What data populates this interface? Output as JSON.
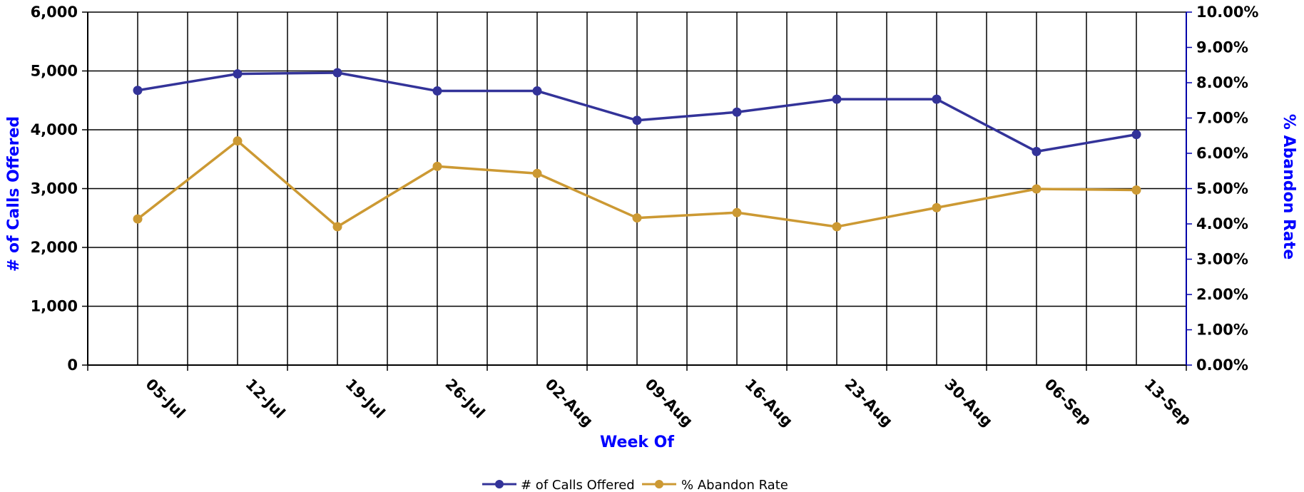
{
  "chart_data": {
    "type": "line",
    "categories": [
      "05-Jul",
      "12-Jul",
      "19-Jul",
      "26-Jul",
      "02-Aug",
      "09-Aug",
      "16-Aug",
      "23-Aug",
      "30-Aug",
      "06-Sep",
      "13-Sep"
    ],
    "series": [
      {
        "name": "# of Calls Offered",
        "axis": "left",
        "color": "#333399",
        "values": [
          4670,
          4950,
          4970,
          4660,
          4660,
          4160,
          4300,
          4520,
          4520,
          3630,
          3920
        ]
      },
      {
        "name": "% Abandon Rate",
        "axis": "right",
        "color": "#CC9933",
        "values": [
          0.0414,
          0.0635,
          0.0392,
          0.0563,
          0.0543,
          0.0417,
          0.0432,
          0.0392,
          0.0446,
          0.0499,
          0.0496
        ]
      }
    ],
    "xlabel": "Week Of",
    "ylabel": "# of Calls Offered",
    "y2label": "% Abandon Rate",
    "ylim": [
      0,
      6000
    ],
    "y2lim": [
      0,
      0.1
    ],
    "yticks": [
      "0",
      "1,000",
      "2,000",
      "3,000",
      "4,000",
      "5,000",
      "6,000"
    ],
    "y2ticks": [
      "0.00%",
      "1.00%",
      "2.00%",
      "3.00%",
      "4.00%",
      "5.00%",
      "6.00%",
      "7.00%",
      "8.00%",
      "9.00%",
      "10.00%"
    ],
    "grid": true,
    "legend_position": "bottom",
    "axis_title_color": "#0000FF",
    "right_axis_color": "#0000AA"
  }
}
